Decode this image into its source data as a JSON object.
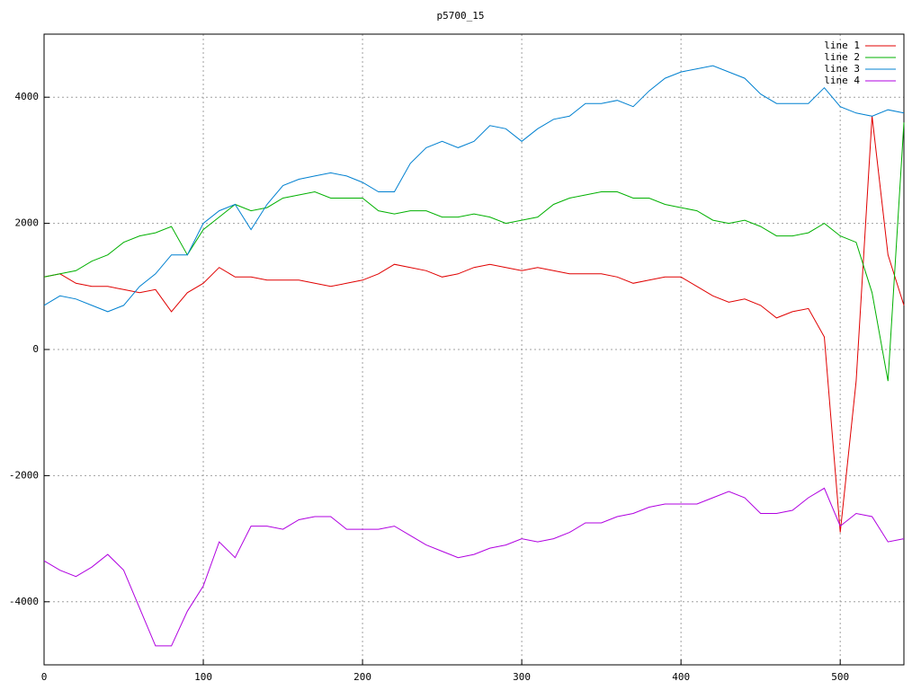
{
  "chart_data": {
    "type": "line",
    "title": "p5700_15",
    "x": [
      0,
      10,
      20,
      30,
      40,
      50,
      60,
      70,
      80,
      90,
      100,
      110,
      120,
      130,
      140,
      150,
      160,
      170,
      180,
      190,
      200,
      210,
      220,
      230,
      240,
      250,
      260,
      270,
      280,
      290,
      300,
      310,
      320,
      330,
      340,
      350,
      360,
      370,
      380,
      390,
      400,
      410,
      420,
      430,
      440,
      450,
      460,
      470,
      480,
      490,
      500,
      510,
      520,
      530,
      540
    ],
    "series": [
      {
        "name": "line 1",
        "color": "#e00000",
        "values": [
          1150,
          1200,
          1050,
          1000,
          1000,
          950,
          900,
          950,
          600,
          900,
          1050,
          1300,
          1150,
          1150,
          1100,
          1100,
          1100,
          1050,
          1000,
          1050,
          1100,
          1200,
          1350,
          1300,
          1250,
          1150,
          1200,
          1300,
          1350,
          1300,
          1250,
          1300,
          1250,
          1200,
          1200,
          1200,
          1150,
          1050,
          1100,
          1150,
          1150,
          1000,
          850,
          750,
          800,
          700,
          500,
          600,
          650,
          200,
          -2900,
          -500,
          3700,
          1500,
          700
        ]
      },
      {
        "name": "line 2",
        "color": "#00b000",
        "values": [
          1150,
          1200,
          1250,
          1400,
          1500,
          1700,
          1800,
          1850,
          1950,
          1500,
          1900,
          2100,
          2300,
          2200,
          2250,
          2400,
          2450,
          2500,
          2400,
          2400,
          2400,
          2200,
          2150,
          2200,
          2200,
          2100,
          2100,
          2150,
          2100,
          2000,
          2050,
          2100,
          2300,
          2400,
          2450,
          2500,
          2500,
          2400,
          2400,
          2300,
          2250,
          2200,
          2050,
          2000,
          2050,
          1950,
          1800,
          1800,
          1850,
          2000,
          1800,
          1700,
          900,
          -500,
          3600
        ]
      },
      {
        "name": "line 3",
        "color": "#0080d0",
        "values": [
          700,
          850,
          800,
          700,
          600,
          700,
          1000,
          1200,
          1500,
          1500,
          2000,
          2200,
          2300,
          1900,
          2300,
          2600,
          2700,
          2750,
          2800,
          2750,
          2650,
          2500,
          2500,
          2950,
          3200,
          3300,
          3200,
          3300,
          3550,
          3500,
          3300,
          3500,
          3650,
          3700,
          3900,
          3900,
          3950,
          3850,
          4100,
          4300,
          4400,
          4450,
          4500,
          4400,
          4300,
          4050,
          3900,
          3900,
          3900,
          4150,
          3850,
          3750,
          3700,
          3800,
          3750
        ]
      },
      {
        "name": "line 4",
        "color": "#b000e0",
        "values": [
          -3350,
          -3500,
          -3600,
          -3450,
          -3250,
          -3500,
          -4100,
          -4700,
          -4700,
          -4150,
          -3750,
          -3050,
          -3300,
          -2800,
          -2800,
          -2850,
          -2700,
          -2650,
          -2650,
          -2850,
          -2850,
          -2850,
          -2800,
          -2950,
          -3100,
          -3200,
          -3300,
          -3250,
          -3150,
          -3100,
          -3000,
          -3050,
          -3000,
          -2900,
          -2750,
          -2750,
          -2650,
          -2600,
          -2500,
          -2450,
          -2450,
          -2450,
          -2350,
          -2250,
          -2350,
          -2600,
          -2600,
          -2550,
          -2350,
          -2200,
          -2800,
          -2600,
          -2650,
          -3050,
          -3000
        ]
      }
    ],
    "xlim": [
      0,
      540
    ],
    "ylim": [
      -5000,
      5000
    ],
    "xticks": [
      0,
      100,
      200,
      300,
      400,
      500
    ],
    "yticks": [
      -4000,
      -2000,
      0,
      2000,
      4000
    ],
    "grid": true,
    "legend": "top-right"
  }
}
